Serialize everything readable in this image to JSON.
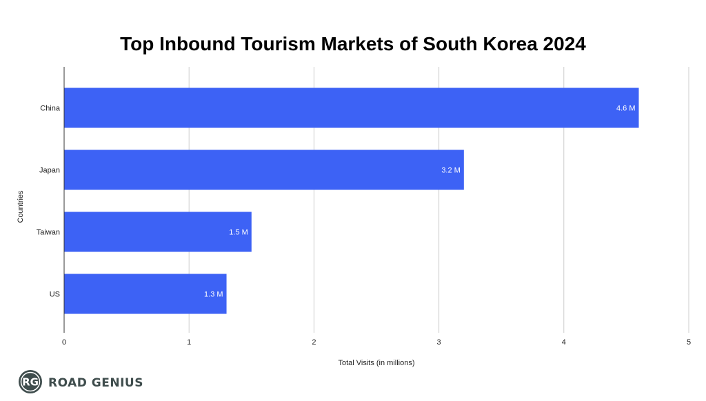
{
  "chart_data": {
    "type": "bar",
    "orientation": "horizontal",
    "title": "Top Inbound Tourism Markets of South Korea 2024",
    "xlabel": "Total Visits (in millions)",
    "ylabel": "Countries",
    "categories": [
      "China",
      "Japan",
      "Taiwan",
      "US"
    ],
    "values": [
      4.6,
      3.2,
      1.5,
      1.3
    ],
    "data_labels": [
      "4.6 M",
      "3.2 M",
      "1.5 M",
      "1.3 M"
    ],
    "xlim": [
      0,
      5
    ],
    "x_ticks": [
      0,
      1,
      2,
      3,
      4,
      5
    ],
    "x_tick_labels": [
      "0",
      "1",
      "2",
      "3",
      "4",
      "5"
    ],
    "grid": "vertical",
    "legend": "none",
    "bar_color": "#3d62f5",
    "label_color": "#ffffff"
  },
  "brand": {
    "monogram": "RG",
    "name": "ROAD GENIUS",
    "badge_color": "#3f4d4d",
    "text_color": "#3f4d4d",
    "icon": "road-genius-logo"
  }
}
